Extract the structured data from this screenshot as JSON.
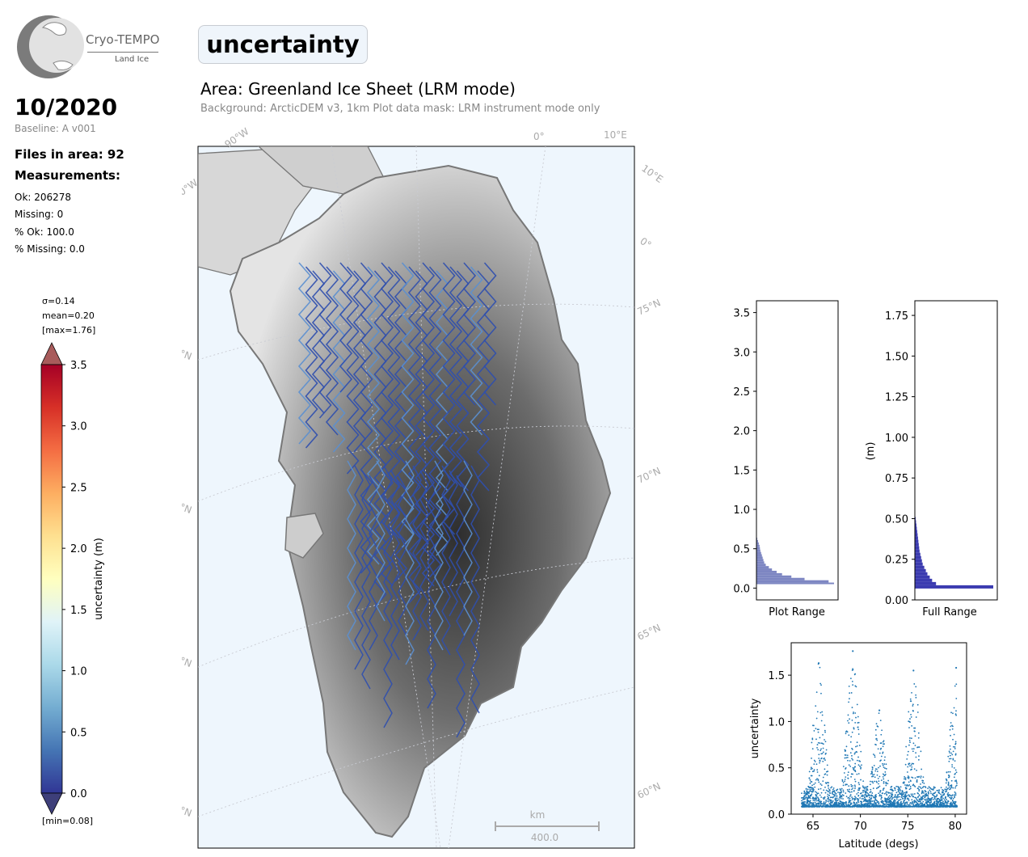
{
  "logo": {
    "title": "Cryo-TEMPO",
    "subtitle": "Land Ice"
  },
  "header": {
    "parameter": "uncertainty",
    "area": "Area: Greenland Ice Sheet (LRM mode)",
    "background": "Background: ArcticDEM v3, 1km   Plot data mask: LRM instrument mode only"
  },
  "sidebar": {
    "date": "10/2020",
    "baseline": "Baseline: A v001",
    "files": "Files in area: 92",
    "measurements_heading": "Measurements:",
    "ok": "Ok: 206278",
    "missing": "Missing: 0",
    "pct_ok": "% Ok: 100.0",
    "pct_missing": "% Missing: 0.0"
  },
  "colorbar": {
    "sigma": "σ=0.14",
    "mean": "mean=0.20",
    "max": "[max=1.76]",
    "min": "[min=0.08]",
    "label": "uncertainty (m)",
    "ticks": [
      "0.0",
      "0.5",
      "1.0",
      "1.5",
      "2.0",
      "2.5",
      "3.0",
      "3.5"
    ],
    "range": [
      0,
      3.5
    ]
  },
  "map": {
    "lon_labels": [
      "90°W",
      "0°",
      "10°E"
    ],
    "lat_labels": [
      "75°N",
      "70°N",
      "65°N",
      "60°N"
    ],
    "scale": {
      "unit": "km",
      "value": "400.0"
    },
    "colors": {
      "ocean": "#eef6fd",
      "coast": "#777777",
      "track": "#2f4fae",
      "track_light": "#5b8fd0"
    }
  },
  "chart_data": [
    {
      "type": "bar",
      "orientation": "horizontal",
      "xlabel": "Plot Range",
      "ylabel": "",
      "ylim": [
        -0.15,
        3.65
      ],
      "yticks": [
        "0.0",
        "0.5",
        "1.0",
        "1.5",
        "2.0",
        "2.5",
        "3.0",
        "3.5"
      ],
      "bin_tops": [
        0.07,
        0.1,
        0.13,
        0.16,
        0.19,
        0.22,
        0.25,
        0.28,
        0.31,
        0.34,
        0.37,
        0.4,
        0.43,
        0.46,
        0.49,
        0.52,
        0.55,
        0.58,
        0.61,
        0.64
      ],
      "values": [
        1.0,
        0.93,
        0.62,
        0.45,
        0.33,
        0.26,
        0.2,
        0.16,
        0.12,
        0.1,
        0.09,
        0.08,
        0.07,
        0.06,
        0.05,
        0.045,
        0.04,
        0.03,
        0.02,
        0.01
      ],
      "color": "#7d86c2"
    },
    {
      "type": "bar",
      "orientation": "horizontal",
      "xlabel": "Full Range",
      "ylabel": "(m)",
      "ylim": [
        0,
        1.84
      ],
      "yticks": [
        "0.00",
        "0.25",
        "0.50",
        "0.75",
        "1.00",
        "1.25",
        "1.50",
        "1.75"
      ],
      "bin_tops": [
        0.09,
        0.11,
        0.13,
        0.15,
        0.17,
        0.19,
        0.21,
        0.23,
        0.25,
        0.27,
        0.29,
        0.31,
        0.33,
        0.35,
        0.37,
        0.39,
        0.41,
        0.43,
        0.45,
        0.47,
        0.49,
        0.51
      ],
      "values": [
        1.0,
        0.27,
        0.22,
        0.19,
        0.16,
        0.14,
        0.12,
        0.1,
        0.09,
        0.08,
        0.07,
        0.06,
        0.055,
        0.05,
        0.045,
        0.04,
        0.035,
        0.03,
        0.025,
        0.02,
        0.015,
        0.01
      ],
      "color": "#3b3bb0"
    },
    {
      "type": "scatter",
      "xlabel": "Latitude (degs)",
      "ylabel": "uncertainty",
      "xlim": [
        62.7,
        81.2
      ],
      "ylim": [
        0,
        1.85
      ],
      "xticks": [
        "65",
        "70",
        "75",
        "80"
      ],
      "yticks": [
        "0.0",
        "0.5",
        "1.0",
        "1.5"
      ],
      "color": "#1f77b4",
      "x_range": [
        63.8,
        80.2
      ],
      "y_min": 0.08,
      "y_max": 1.76,
      "peaks": [
        {
          "x": 65.6,
          "y": 1.63
        },
        {
          "x": 69.2,
          "y": 1.76
        },
        {
          "x": 72.0,
          "y": 1.12
        },
        {
          "x": 75.6,
          "y": 1.55
        },
        {
          "x": 80.1,
          "y": 1.58
        }
      ]
    }
  ]
}
